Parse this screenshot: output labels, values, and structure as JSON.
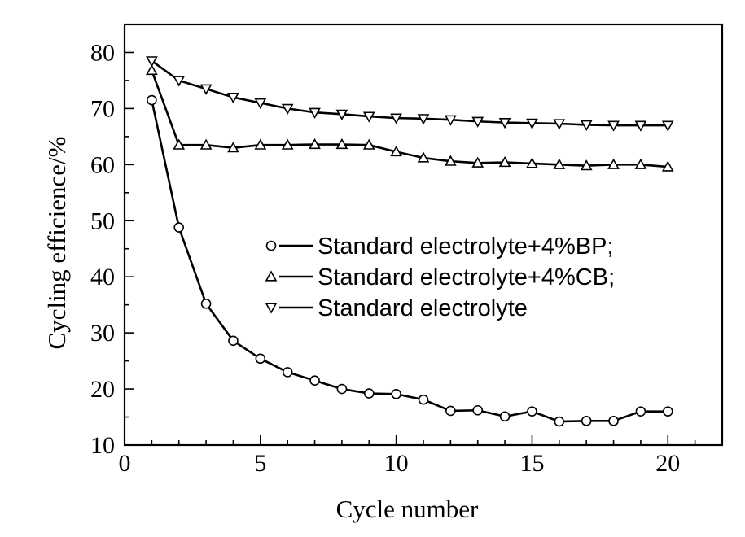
{
  "chart_data": {
    "type": "line",
    "xlabel": "Cycle number",
    "ylabel": "Cycling efficience/%",
    "xlim": [
      0,
      22
    ],
    "ylim": [
      10,
      85
    ],
    "xticks": [
      "0",
      "5",
      "10",
      "15",
      "20"
    ],
    "yticks": [
      "10",
      "20",
      "30",
      "40",
      "50",
      "60",
      "70",
      "80"
    ],
    "grid": false,
    "legend_position": "center-right",
    "x": [
      1,
      2,
      3,
      4,
      5,
      6,
      7,
      8,
      9,
      10,
      11,
      12,
      13,
      14,
      15,
      16,
      17,
      18,
      19,
      20
    ],
    "series": [
      {
        "name": "Standard electrolyte+4%BP;",
        "marker": "circle",
        "values": [
          71.5,
          48.8,
          35.2,
          28.6,
          25.4,
          23.0,
          21.5,
          20.0,
          19.2,
          19.1,
          18.1,
          16.1,
          16.2,
          15.1,
          16.0,
          14.2,
          14.3,
          14.3,
          16.0,
          16.0
        ]
      },
      {
        "name": "Standard electrolyte+4%CB;",
        "marker": "triangle-up",
        "values": [
          76.8,
          63.5,
          63.5,
          63.0,
          63.5,
          63.5,
          63.6,
          63.6,
          63.5,
          62.3,
          61.2,
          60.6,
          60.3,
          60.4,
          60.2,
          60.0,
          59.8,
          60.0,
          60.0,
          59.6
        ]
      },
      {
        "name": "Standard electrolyte",
        "marker": "triangle-down",
        "values": [
          78.5,
          75.0,
          73.5,
          72.0,
          71.0,
          70.0,
          69.3,
          69.0,
          68.6,
          68.3,
          68.2,
          68.0,
          67.7,
          67.5,
          67.4,
          67.3,
          67.1,
          67.0,
          67.0,
          67.0
        ]
      }
    ]
  }
}
